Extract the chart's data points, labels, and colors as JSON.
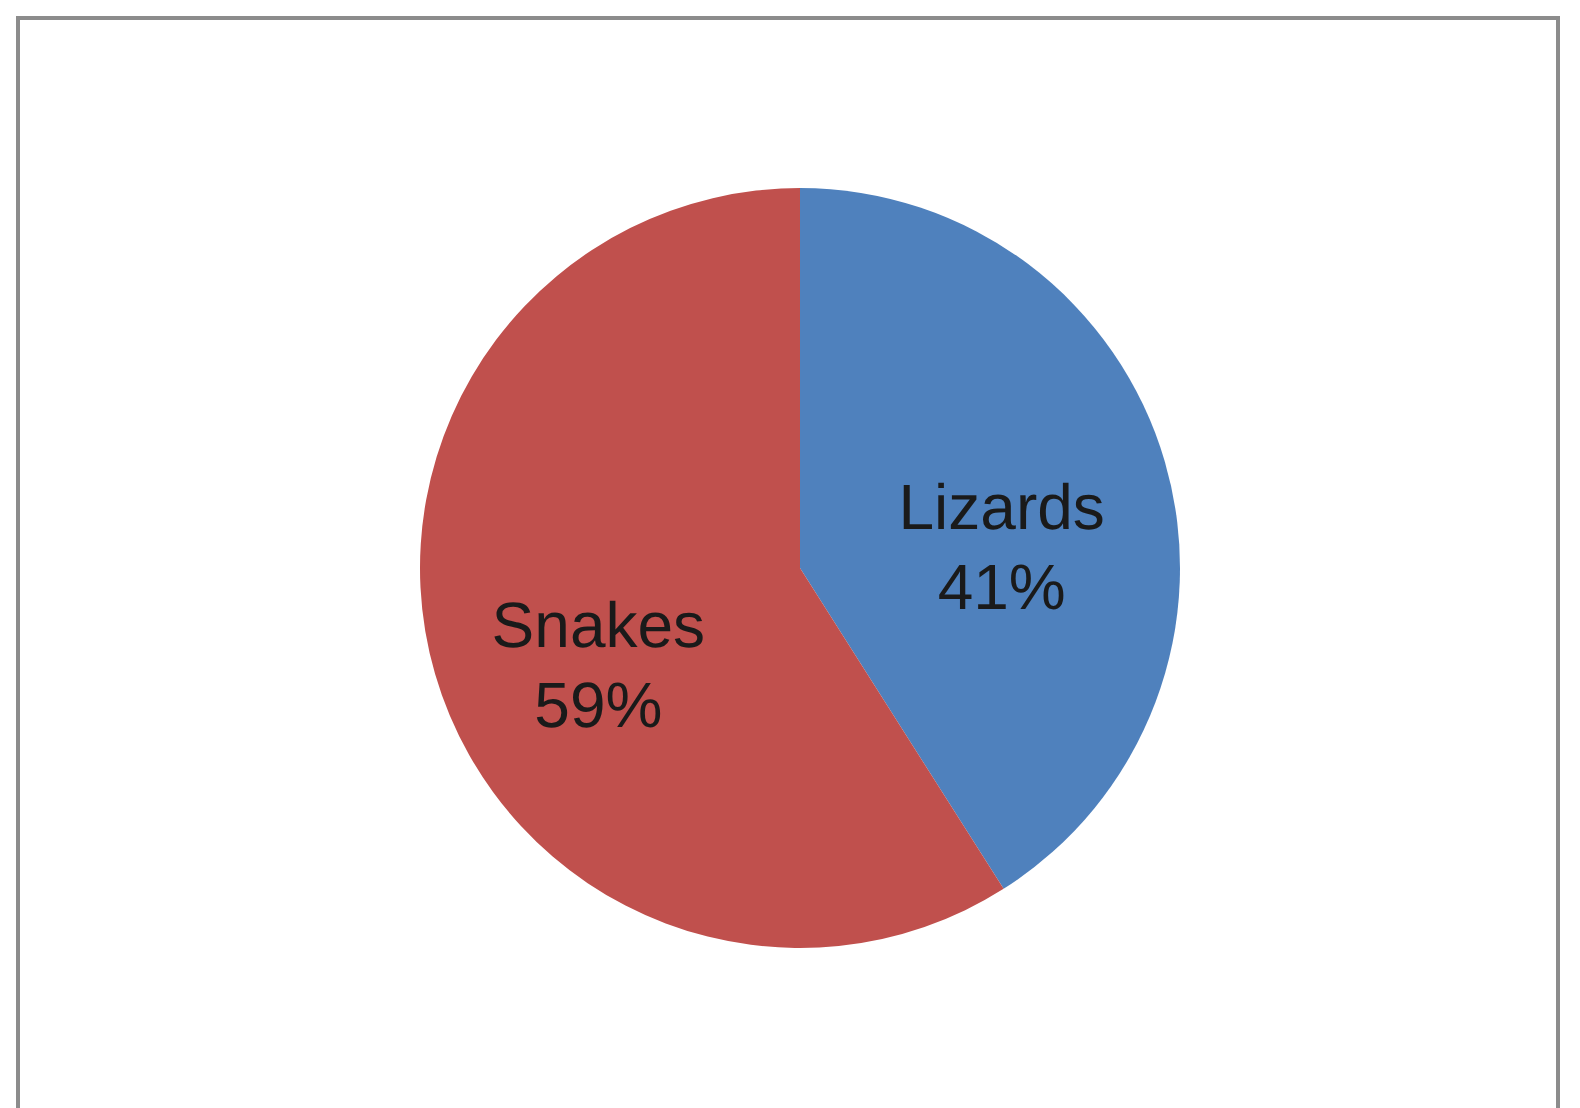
{
  "chart_data": {
    "type": "pie",
    "categories": [
      "Lizards",
      "Snakes"
    ],
    "values": [
      41,
      59
    ],
    "colors": [
      "#4f81bd",
      "#c0504d"
    ],
    "value_labels": [
      "41%",
      "59%"
    ]
  }
}
